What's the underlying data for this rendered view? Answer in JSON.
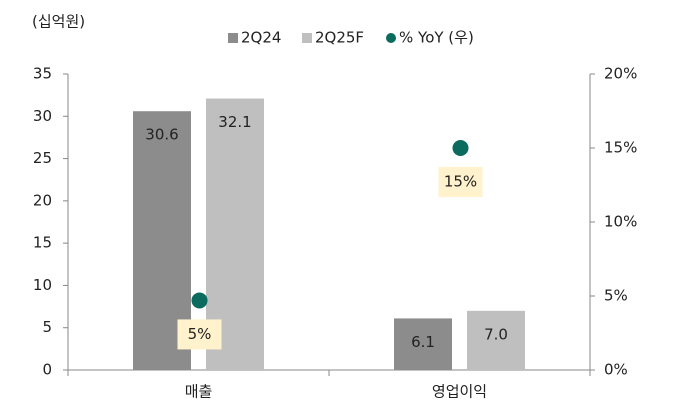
{
  "chart_data": {
    "type": "bar",
    "y_label": "(십억원)",
    "categories": [
      "매출",
      "영업이익"
    ],
    "series": [
      {
        "name": "2Q24",
        "color": "#8c8c8c",
        "values": [
          30.6,
          6.1
        ],
        "value_labels": [
          "30.6",
          "6.1"
        ]
      },
      {
        "name": "2Q25F",
        "color": "#bfbfbf",
        "values": [
          32.1,
          7.0
        ],
        "value_labels": [
          "32.1",
          "7.0"
        ]
      },
      {
        "name": "% YoY (우)",
        "type": "scatter",
        "axis": "y2",
        "color": "#0b6b5e",
        "values": [
          4.7,
          15
        ],
        "value_labels": [
          "5%",
          "15%"
        ]
      }
    ],
    "ylim": [
      0,
      35
    ],
    "yticks": [
      0,
      5,
      10,
      15,
      20,
      25,
      30,
      35
    ],
    "y2lim": [
      0,
      20
    ],
    "y2ticks": [
      {
        "value": 0,
        "label": "0%"
      },
      {
        "value": 5,
        "label": "5%"
      },
      {
        "value": 10,
        "label": "10%"
      },
      {
        "value": 15,
        "label": "15%"
      },
      {
        "value": 20,
        "label": "20%"
      }
    ],
    "grid": false
  }
}
